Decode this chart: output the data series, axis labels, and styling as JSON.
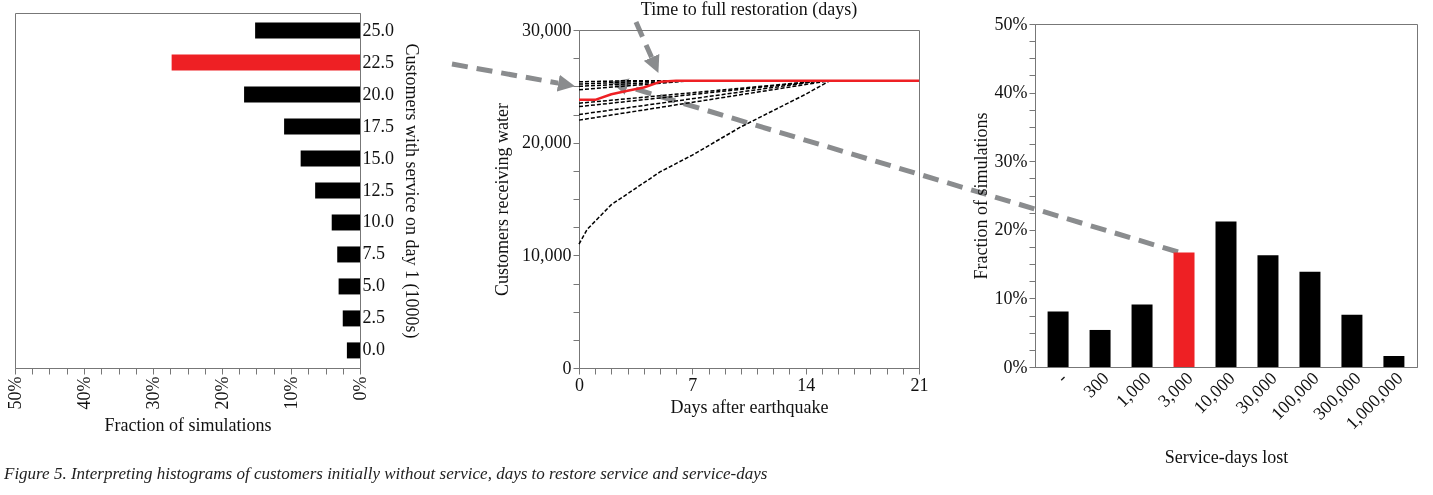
{
  "chart_data": [
    {
      "type": "bar",
      "orientation": "horizontal",
      "xlabel": "Fraction of simulations",
      "ylabel": "Customers with service on day 1 (1000s)",
      "categories": [
        "25.0",
        "22.5",
        "20.0",
        "17.5",
        "15.0",
        "12.5",
        "10.0",
        "7.5",
        "5.0",
        "2.5",
        "0.0"
      ],
      "values": [
        15.2,
        27.3,
        16.8,
        11.0,
        8.6,
        6.5,
        4.1,
        3.3,
        3.1,
        2.5,
        1.9
      ],
      "colors": [
        "#000000",
        "#ee2024",
        "#000000",
        "#000000",
        "#000000",
        "#000000",
        "#000000",
        "#000000",
        "#000000",
        "#000000",
        "#000000"
      ],
      "xlim": [
        50,
        0
      ],
      "xticks": [
        {
          "value": 50,
          "label": "50%"
        },
        {
          "value": 47.5,
          "label": null
        },
        {
          "value": 45,
          "label": null
        },
        {
          "value": 42.5,
          "label": null
        },
        {
          "value": 40,
          "label": "40%"
        },
        {
          "value": 37.5,
          "label": null
        },
        {
          "value": 35,
          "label": null
        },
        {
          "value": 32.5,
          "label": null
        },
        {
          "value": 30,
          "label": "30%"
        },
        {
          "value": 27.5,
          "label": null
        },
        {
          "value": 25,
          "label": null
        },
        {
          "value": 22.5,
          "label": null
        },
        {
          "value": 20,
          "label": "20%"
        },
        {
          "value": 17.5,
          "label": null
        },
        {
          "value": 15,
          "label": null
        },
        {
          "value": 12.5,
          "label": null
        },
        {
          "value": 10,
          "label": "10%"
        },
        {
          "value": 7.5,
          "label": null
        },
        {
          "value": 5,
          "label": null
        },
        {
          "value": 2.5,
          "label": null
        },
        {
          "value": 0,
          "label": "0%"
        }
      ],
      "annotations": [
        "Figure 5. Interpreting histograms of customers initially without service, days to restore service and service-days"
      ]
    },
    {
      "type": "line",
      "title": "Time to full restoration (days)",
      "xlabel": "Days after earthquake",
      "ylabel": "Customers receiving water",
      "xlim": [
        0,
        21
      ],
      "xticks": [
        0,
        {
          "value": 1,
          "label": null
        },
        {
          "value": 2,
          "label": null
        },
        {
          "value": 3,
          "label": null
        },
        {
          "value": 4,
          "label": null
        },
        {
          "value": 5,
          "label": null
        },
        {
          "value": 6,
          "label": null
        },
        7,
        {
          "value": 8,
          "label": null
        },
        {
          "value": 9,
          "label": null
        },
        {
          "value": 10,
          "label": null
        },
        {
          "value": 11,
          "label": null
        },
        {
          "value": 12,
          "label": null
        },
        {
          "value": 13,
          "label": null
        },
        14,
        {
          "value": 15,
          "label": null
        },
        {
          "value": 16,
          "label": null
        },
        {
          "value": 17,
          "label": null
        },
        {
          "value": 18,
          "label": null
        },
        {
          "value": 19,
          "label": null
        },
        {
          "value": 20,
          "label": null
        },
        21
      ],
      "ylim": [
        0,
        30000
      ],
      "yticks": [
        0,
        {
          "value": 2500,
          "label": null
        },
        {
          "value": 5000,
          "label": null
        },
        {
          "value": 7500,
          "label": null
        },
        {
          "value": 10000,
          "label": "10,000"
        },
        {
          "value": 12500,
          "label": null
        },
        {
          "value": 15000,
          "label": null
        },
        {
          "value": 17500,
          "label": null
        },
        {
          "value": 20000,
          "label": "20,000"
        },
        {
          "value": 22500,
          "label": null
        },
        {
          "value": 25000,
          "label": null
        },
        {
          "value": 27500,
          "label": null
        },
        {
          "value": 30000,
          "label": "30,000"
        }
      ],
      "series": [
        {
          "color": "#000000",
          "line_style": "dashed",
          "x": [
            0,
            3,
            21
          ],
          "values": [
            25400,
            25500,
            25500
          ]
        },
        {
          "color": "#000000",
          "line_style": "dashed",
          "x": [
            0,
            5,
            21
          ],
          "values": [
            25200,
            25500,
            25500
          ]
        },
        {
          "color": "#000000",
          "line_style": "dashed",
          "x": [
            0,
            7,
            21
          ],
          "values": [
            25000,
            25500,
            25500
          ]
        },
        {
          "color": "#000000",
          "line_style": "dashed",
          "x": [
            0,
            7,
            21
          ],
          "values": [
            24700,
            25500,
            25500
          ]
        },
        {
          "color": "#000000",
          "line_style": "dashed",
          "x": [
            0,
            15,
            21
          ],
          "values": [
            23500,
            25500,
            25500
          ]
        },
        {
          "color": "#000000",
          "line_style": "dashed",
          "x": [
            0,
            15,
            21
          ],
          "values": [
            23200,
            25500,
            25500
          ]
        },
        {
          "color": "#000000",
          "line_style": "dashed",
          "x": [
            0,
            15,
            21
          ],
          "values": [
            22500,
            25500,
            25500
          ]
        },
        {
          "color": "#000000",
          "line_style": "dashed",
          "x": [
            0,
            15.5,
            21
          ],
          "values": [
            22000,
            25500,
            25500
          ]
        },
        {
          "color": "#000000",
          "line_style": "dashed",
          "x": [
            0,
            0.5,
            2,
            5,
            7,
            10,
            14,
            15.5,
            21
          ],
          "values": [
            11000,
            12300,
            14500,
            17400,
            18900,
            21400,
            24300,
            25500,
            25500
          ]
        },
        {
          "color": "#ee2024",
          "line_style": "solid",
          "x": [
            0,
            1,
            2,
            3,
            4,
            5,
            6,
            21
          ],
          "values": [
            23800,
            23800,
            24300,
            24600,
            24900,
            25400,
            25500,
            25500
          ]
        }
      ]
    },
    {
      "type": "bar",
      "xlabel": "Service-days lost",
      "ylabel": "Fraction of simulations",
      "categories": [
        "-",
        "300",
        "1,000",
        "3,000",
        "10,000",
        "30,000",
        "100,000",
        "300,000",
        "1,000,000"
      ],
      "values": [
        8.1,
        5.4,
        9.1,
        16.7,
        21.2,
        16.3,
        13.9,
        7.6,
        1.6
      ],
      "colors": [
        "#000000",
        "#000000",
        "#000000",
        "#ee2024",
        "#000000",
        "#000000",
        "#000000",
        "#000000",
        "#000000"
      ],
      "ylim": [
        0,
        50
      ],
      "yticks": [
        {
          "value": 0,
          "label": "0%"
        },
        {
          "value": 2.5,
          "label": null
        },
        {
          "value": 5,
          "label": null
        },
        {
          "value": 7.5,
          "label": null
        },
        {
          "value": 10,
          "label": "10%"
        },
        {
          "value": 12.5,
          "label": null
        },
        {
          "value": 15,
          "label": null
        },
        {
          "value": 17.5,
          "label": null
        },
        {
          "value": 20,
          "label": "20%"
        },
        {
          "value": 22.5,
          "label": null
        },
        {
          "value": 25,
          "label": null
        },
        {
          "value": 27.5,
          "label": null
        },
        {
          "value": 30,
          "label": "30%"
        },
        {
          "value": 32.5,
          "label": null
        },
        {
          "value": 35,
          "label": null
        },
        {
          "value": 37.5,
          "label": null
        },
        {
          "value": 40,
          "label": "40%"
        },
        {
          "value": 42.5,
          "label": null
        },
        {
          "value": 45,
          "label": null
        },
        {
          "value": 47.5,
          "label": null
        },
        {
          "value": 50,
          "label": "50%"
        }
      ]
    }
  ]
}
